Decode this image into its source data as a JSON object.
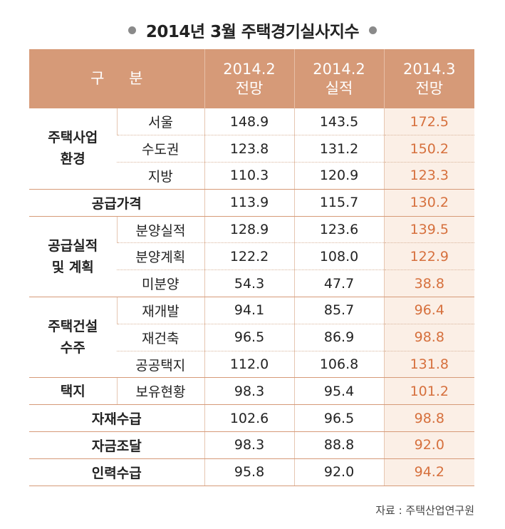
{
  "title": "2014년 3월 주택경기실사지수",
  "header": {
    "category": "구 분",
    "col1_line1": "2014.2",
    "col1_line2": "전망",
    "col2_line1": "2014.2",
    "col2_line2": "실적",
    "col3_line1": "2014.3",
    "col3_line2": "전망"
  },
  "groups": {
    "housing_env": "주택사업\n환경",
    "supply_price": "공급가격",
    "supply_plan": "공급실적\n및 계획",
    "construction": "주택건설\n수주",
    "land": "택지",
    "materials": "자재수급",
    "funding": "자금조달",
    "labor": "인력수급"
  },
  "rows": [
    {
      "sub": "서울",
      "v1": "148.9",
      "v2": "143.5",
      "v3": "172.5"
    },
    {
      "sub": "수도권",
      "v1": "123.8",
      "v2": "131.2",
      "v3": "150.2"
    },
    {
      "sub": "지방",
      "v1": "110.3",
      "v2": "120.9",
      "v3": "123.3"
    },
    {
      "sub": "",
      "v1": "113.9",
      "v2": "115.7",
      "v3": "130.2"
    },
    {
      "sub": "분양실적",
      "v1": "128.9",
      "v2": "123.6",
      "v3": "139.5"
    },
    {
      "sub": "분양계획",
      "v1": "122.2",
      "v2": "108.0",
      "v3": "122.9"
    },
    {
      "sub": "미분양",
      "v1": "54.3",
      "v2": "47.7",
      "v3": "38.8"
    },
    {
      "sub": "재개발",
      "v1": "94.1",
      "v2": "85.7",
      "v3": "96.4"
    },
    {
      "sub": "재건축",
      "v1": "96.5",
      "v2": "86.9",
      "v3": "98.8"
    },
    {
      "sub": "공공택지",
      "v1": "112.0",
      "v2": "106.8",
      "v3": "131.8"
    },
    {
      "sub": "보유현황",
      "v1": "98.3",
      "v2": "95.4",
      "v3": "101.2"
    },
    {
      "sub": "",
      "v1": "102.6",
      "v2": "96.5",
      "v3": "98.8"
    },
    {
      "sub": "",
      "v1": "98.3",
      "v2": "88.8",
      "v3": "92.0"
    },
    {
      "sub": "",
      "v1": "95.8",
      "v2": "92.0",
      "v3": "94.2"
    }
  ],
  "source": "자료 : 주택산업연구원",
  "colors": {
    "header_bg": "#d69a78",
    "highlight_text": "#d6703d",
    "highlight_bg": "#fbefe6"
  }
}
